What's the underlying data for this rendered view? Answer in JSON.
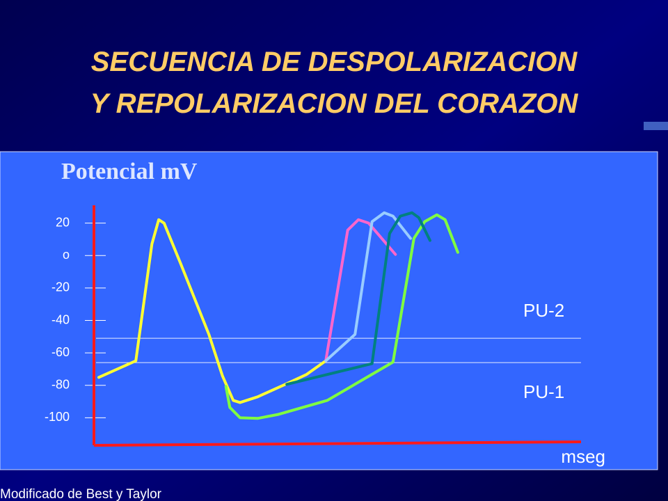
{
  "chart_data": {
    "type": "line",
    "title": [
      "SECUENCIA DE DESPOLARIZACION",
      "Y REPOLARIZACION DEL CORAZON"
    ],
    "ylabel": "Potencial  mV",
    "xlabel": "mseg",
    "source": "Modificado de Best y Taylor",
    "xlim": [
      0,
      100
    ],
    "ylim": [
      -117,
      31
    ],
    "yticks": [
      20,
      {
        "value": 0,
        "label": "o"
      },
      -20,
      -40,
      -60,
      -80,
      -100
    ],
    "axis_color": "#ff1a1a",
    "reference_lines": [
      {
        "label": "PU-2",
        "value": -51
      },
      {
        "label": "PU-1",
        "value": -66
      }
    ],
    "series": [
      {
        "color": "#ffff33",
        "x": [
          1,
          8.6,
          11.9,
          13.3,
          14.4,
          17.9,
          23.6,
          26.4,
          28.6,
          30,
          33.6,
          39.3,
          43.6,
          47.6
        ],
        "values": [
          -75.1,
          -64.9,
          7.1,
          22.1,
          20,
          -5.7,
          -48.6,
          -74.3,
          -89.3,
          -90.6,
          -87.1,
          -79.4,
          -73.4,
          -64.9
        ]
      },
      {
        "color": "#80ff40",
        "x": [
          27.1,
          27.9,
          30,
          33.6,
          37.9,
          47.9,
          61.4,
          65.7,
          67.9,
          70.4,
          72.1,
          74.7
        ],
        "values": [
          -80.7,
          -93.6,
          -100,
          -100.4,
          -97.9,
          -89.3,
          -65.7,
          10.6,
          20.9,
          25.1,
          22.1,
          2
        ]
      },
      {
        "color": "#ff66cc",
        "x": [
          47.6,
          52.1,
          54.3,
          56.4,
          61.9
        ],
        "values": [
          -64.9,
          15.7,
          22.1,
          20,
          0.7
        ]
      },
      {
        "color": "#99ccff",
        "x": [
          47.6,
          53.6,
          57.1,
          59.6,
          61.4,
          65
        ],
        "values": [
          -64.9,
          -48.6,
          20.9,
          26.4,
          24.3,
          10.6
        ]
      },
      {
        "color": "#008080",
        "x": [
          39.6,
          57.1,
          60.7,
          62.9,
          65.3,
          66.7,
          69
        ],
        "values": [
          -79.4,
          -66.6,
          13.6,
          24.3,
          26.4,
          23.4,
          9.3
        ]
      }
    ]
  }
}
